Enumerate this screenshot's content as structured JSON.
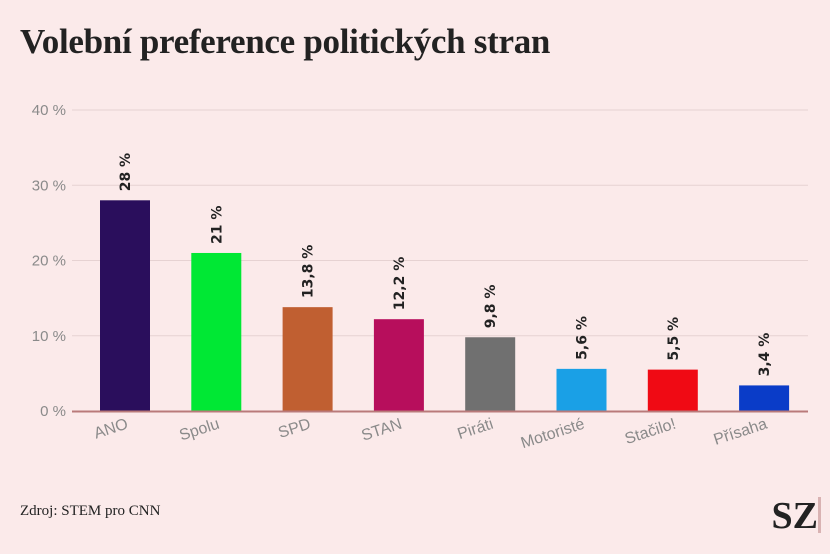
{
  "title": "Volební preference politických stran",
  "source": "Zdroj: STEM pro CNN",
  "logo": "SZ",
  "chart_data": {
    "type": "bar",
    "title": "Volební preference politických stran",
    "xlabel": "",
    "ylabel": "",
    "ylim": [
      0,
      40
    ],
    "yticks": [
      0,
      10,
      20,
      30,
      40
    ],
    "ytick_labels": [
      "0 %",
      "10 %",
      "20 %",
      "30 %",
      "40 %"
    ],
    "grid": true,
    "categories": [
      "ANO",
      "Spolu",
      "SPD",
      "STAN",
      "Piráti",
      "Motoristé",
      "Stačilo!",
      "Přísaha"
    ],
    "values": [
      28,
      21,
      13.8,
      12.2,
      9.8,
      5.6,
      5.5,
      3.4
    ],
    "value_labels": [
      "28 %",
      "21 %",
      "13,8 %",
      "12,2 %",
      "9,8 %",
      "5,6 %",
      "5,5 %",
      "3,4 %"
    ],
    "colors": [
      "#2a0e5c",
      "#00e834",
      "#c05f31",
      "#b70e5c",
      "#707070",
      "#1aa0e6",
      "#f00a14",
      "#0a3cc8"
    ]
  }
}
